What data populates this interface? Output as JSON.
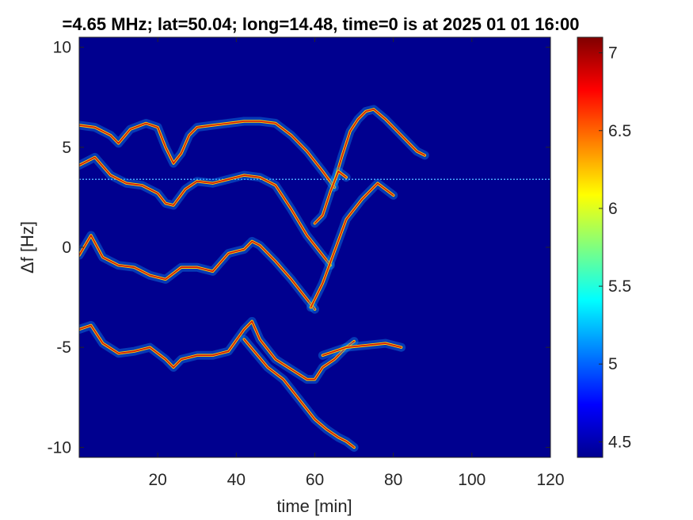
{
  "chart_data": {
    "type": "heatmap",
    "title": "=4.65 MHz;  lat=50.04; long=14.48, time=0 is at 2025 01 01 16:00",
    "xlabel": "time [min]",
    "ylabel": "Δf [Hz]",
    "xlim": [
      0,
      120
    ],
    "ylim": [
      -10.5,
      10.5
    ],
    "xticks": [
      20,
      40,
      60,
      80,
      100,
      120
    ],
    "yticks": [
      -10,
      -5,
      0,
      5,
      10
    ],
    "xtick_labels": [
      "20",
      "40",
      "60",
      "80",
      "100",
      "120"
    ],
    "ytick_labels": [
      "-10",
      "-5",
      "0",
      "5",
      "10"
    ],
    "background_color": "#00008f",
    "colormap": "jet",
    "colorbar": {
      "clim": [
        4.4,
        7.1
      ],
      "ticks": [
        4.5,
        5,
        5.5,
        6,
        6.5,
        7
      ],
      "tick_labels": [
        "4.5",
        "5",
        "5.5",
        "6",
        "6.5",
        "7"
      ]
    },
    "grid": false,
    "carrier_line": {
      "y": 3.4,
      "x_range": [
        0,
        120
      ]
    },
    "traces": [
      {
        "x": [
          0,
          4,
          8,
          10,
          13,
          17,
          20,
          22,
          24,
          26,
          28,
          30,
          34,
          38,
          42,
          46,
          50,
          54,
          58,
          62,
          65
        ],
        "y": [
          6.1,
          6.0,
          5.6,
          5.2,
          5.9,
          6.2,
          6.0,
          5.0,
          4.2,
          4.7,
          5.6,
          6.0,
          6.1,
          6.2,
          6.3,
          6.3,
          6.2,
          5.6,
          4.8,
          3.8,
          3.0
        ]
      },
      {
        "x": [
          65,
          67,
          69,
          71,
          73,
          75,
          78,
          82,
          86,
          88
        ],
        "y": [
          3.3,
          4.6,
          5.8,
          6.4,
          6.8,
          6.9,
          6.4,
          5.6,
          4.8,
          4.6
        ]
      },
      {
        "x": [
          0,
          4,
          8,
          12,
          16,
          20,
          22,
          24,
          27,
          30,
          34,
          38,
          42,
          46,
          50,
          54,
          58,
          62,
          64
        ],
        "y": [
          4.1,
          4.5,
          3.6,
          3.2,
          3.1,
          2.7,
          2.2,
          2.1,
          2.9,
          3.3,
          3.2,
          3.4,
          3.6,
          3.5,
          3.1,
          1.9,
          0.6,
          -0.4,
          -0.9
        ]
      },
      {
        "x": [
          60,
          62,
          64,
          66,
          68
        ],
        "y": [
          1.2,
          1.6,
          2.8,
          3.8,
          3.5
        ]
      },
      {
        "x": [
          0,
          3,
          6,
          10,
          14,
          18,
          22,
          26,
          30,
          34,
          38,
          42,
          44,
          46,
          50,
          54,
          58,
          60
        ],
        "y": [
          -0.4,
          0.6,
          -0.5,
          -0.9,
          -1.0,
          -1.4,
          -1.6,
          -1.0,
          -1.0,
          -1.2,
          -0.3,
          -0.1,
          0.3,
          0.1,
          -0.7,
          -1.6,
          -2.6,
          -3.1
        ]
      },
      {
        "x": [
          59,
          62,
          65,
          68,
          72,
          76,
          80
        ],
        "y": [
          -3.0,
          -1.8,
          -0.2,
          1.4,
          2.4,
          3.2,
          2.6
        ]
      },
      {
        "x": [
          0,
          3,
          6,
          10,
          14,
          18,
          22,
          24,
          26,
          30,
          34,
          38,
          42,
          44,
          46,
          50,
          54,
          58,
          60,
          62,
          65,
          68,
          70
        ],
        "y": [
          -4.1,
          -3.9,
          -4.8,
          -5.3,
          -5.2,
          -5.0,
          -5.6,
          -6.0,
          -5.6,
          -5.4,
          -5.4,
          -5.2,
          -4.1,
          -3.7,
          -4.6,
          -5.6,
          -6.1,
          -6.6,
          -6.6,
          -6.0,
          -5.6,
          -5.0,
          -4.7
        ]
      },
      {
        "x": [
          42,
          48,
          52,
          56,
          60,
          63,
          66,
          68,
          70
        ],
        "y": [
          -4.6,
          -6.0,
          -6.6,
          -7.6,
          -8.6,
          -9.1,
          -9.5,
          -9.7,
          -10.0
        ]
      },
      {
        "x": [
          62,
          68,
          73,
          78,
          82
        ],
        "y": [
          -5.4,
          -5.0,
          -4.9,
          -4.8,
          -5.0
        ]
      }
    ]
  }
}
